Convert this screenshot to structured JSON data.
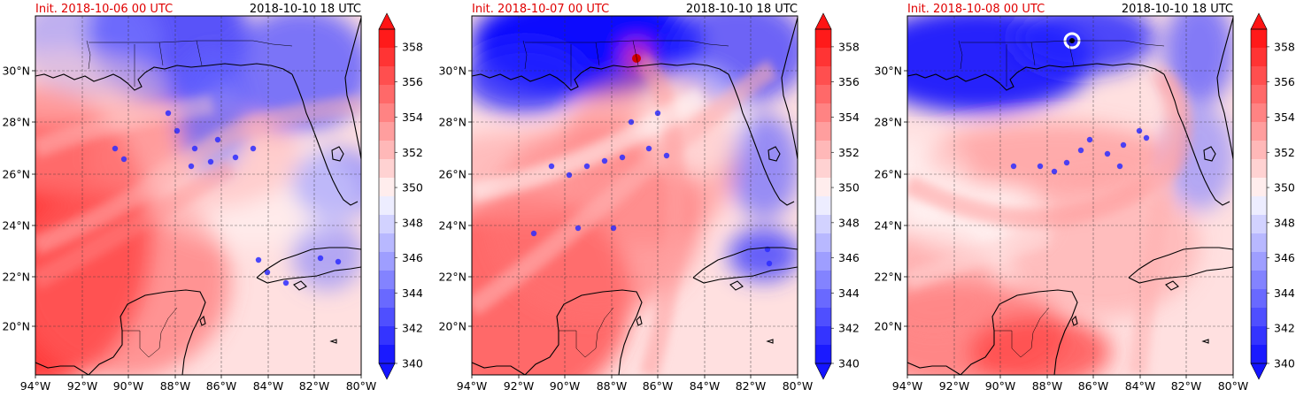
{
  "colormap": {
    "low": "#0000ff",
    "mid": "#ffffff",
    "high": "#ff0000"
  },
  "colorbar_levels": [
    "358",
    "356",
    "354",
    "352",
    "350",
    "348",
    "346",
    "344",
    "342",
    "340"
  ],
  "x_tick_labels": [
    "94°W",
    "92°W",
    "90°W",
    "88°W",
    "86°W",
    "84°W",
    "82°W",
    "80°W"
  ],
  "y_tick_labels": [
    "30°N",
    "28°N",
    "26°N",
    "24°N",
    "22°N",
    "20°N"
  ],
  "panels": [
    {
      "init_label": "Init. 2018-10-06 00 UTC",
      "valid_label": "2018-10-10 18 UTC"
    },
    {
      "init_label": "Init. 2018-10-07 00 UTC",
      "valid_label": "2018-10-10 18 UTC"
    },
    {
      "init_label": "Init. 2018-10-08 00 UTC",
      "valid_label": "2018-10-10 18 UTC"
    }
  ]
}
